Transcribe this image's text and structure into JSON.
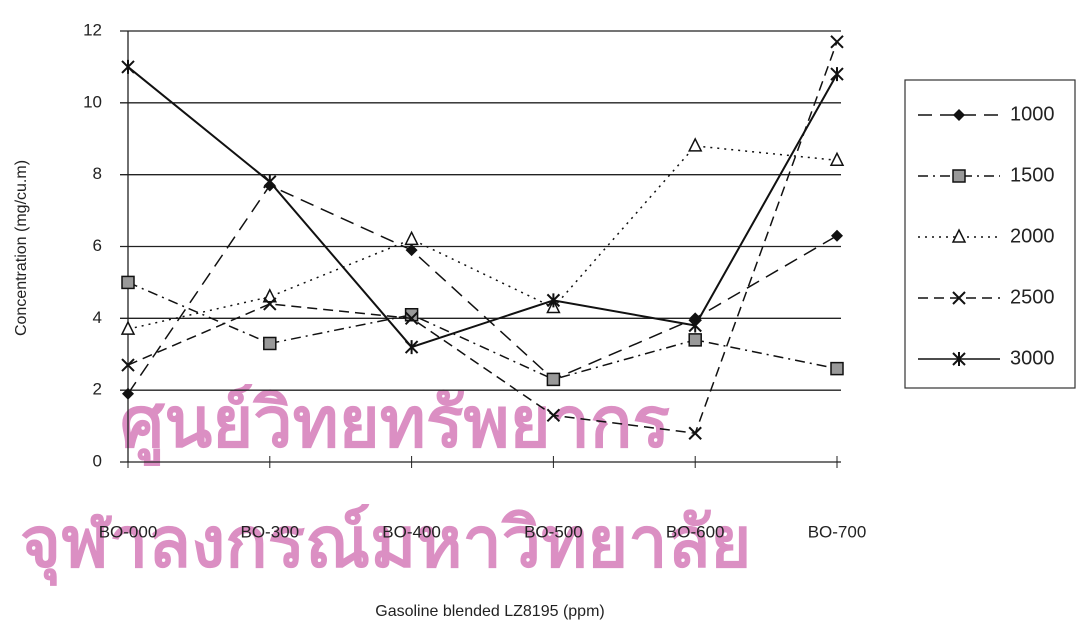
{
  "chart_data": {
    "type": "line",
    "x_label": "Gasoline blended LZ8195   (ppm)",
    "y_label": "Concentration (mg/cu.m)",
    "watermark": [
      "ศูนย์วิทยทรัพยากร",
      "จุฬาลงกรณ์มหาวิทยาลัย"
    ],
    "categories": [
      "BO-000",
      "BO-300",
      "BO-400",
      "BO-500",
      "BO-600",
      "BO-700"
    ],
    "ylim": [
      0,
      12
    ],
    "yticks": [
      0,
      2,
      4,
      6,
      8,
      10,
      12
    ],
    "grid": true,
    "legend": "right",
    "series": [
      {
        "name": "1000",
        "color": "#111111",
        "marker": "diamond",
        "dash": "14,8",
        "values": [
          1.9,
          7.7,
          5.9,
          2.3,
          4.0,
          6.3
        ]
      },
      {
        "name": "1500",
        "color": "#111111",
        "marker": "square",
        "dash": "10,5,2,5",
        "values": [
          5.0,
          3.3,
          4.1,
          2.3,
          3.4,
          2.6
        ]
      },
      {
        "name": "2000",
        "color": "#111111",
        "marker": "triangle",
        "dash": "2,5",
        "values": [
          3.7,
          4.6,
          6.2,
          4.3,
          8.8,
          8.4
        ]
      },
      {
        "name": "2500",
        "color": "#111111",
        "marker": "x",
        "dash": "10,6",
        "values": [
          2.7,
          4.4,
          4.0,
          1.3,
          0.8,
          11.7
        ]
      },
      {
        "name": "3000",
        "color": "#111111",
        "marker": "star",
        "dash": "none",
        "values": [
          11.0,
          7.8,
          3.2,
          4.5,
          3.8,
          10.8
        ]
      }
    ]
  }
}
